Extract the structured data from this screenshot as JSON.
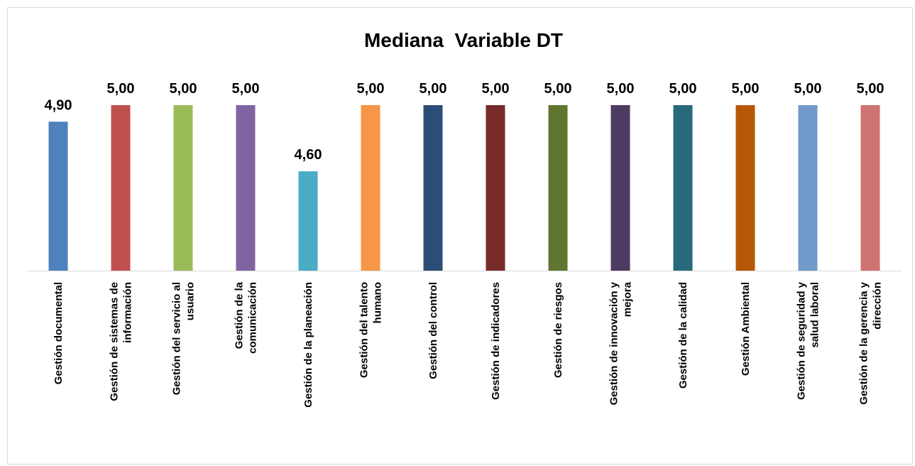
{
  "chart_data": {
    "type": "bar",
    "title": "Mediana  Variable DT",
    "xlabel": "",
    "ylabel": "",
    "ylim": [
      4.0,
      5.0
    ],
    "legend": "none",
    "grid": false,
    "categories": [
      "Gestión documental",
      "Gestión de sistemas de información",
      "Gestión del servicio al usuario",
      "Gestión de la comunicación",
      "Gestión de la planeación",
      "Gestión del talento humano",
      "Gestión del control",
      "Gestión de indicadores",
      "Gestión de riesgos",
      "Gestión de innovación y mejora",
      "Gestión de la calidad",
      "Gestión Ambiental",
      "Gestión de seguridad y salud laboral",
      "Gestión de la gerencia y dirección"
    ],
    "category_lines": [
      [
        "Gestión documental"
      ],
      [
        "Gestión de sistemas de",
        "información"
      ],
      [
        "Gestión del servicio al",
        "usuario"
      ],
      [
        "Gestión de la",
        "comunicación"
      ],
      [
        "Gestión de la planeación"
      ],
      [
        "Gestión del talento",
        "humano"
      ],
      [
        "Gestión del control"
      ],
      [
        "Gestión de indicadores"
      ],
      [
        "Gestión de riesgos"
      ],
      [
        "Gestión de innovación y",
        "mejora"
      ],
      [
        "Gestión de la calidad"
      ],
      [
        "Gestión Ambiental"
      ],
      [
        "Gestión de seguridad y",
        "salud laboral"
      ],
      [
        "Gestión de la gerencia y",
        "dirección"
      ]
    ],
    "values": [
      4.9,
      5.0,
      5.0,
      5.0,
      4.6,
      5.0,
      5.0,
      5.0,
      5.0,
      5.0,
      5.0,
      5.0,
      5.0,
      5.0
    ],
    "data_labels": [
      "4,90",
      "5,00",
      "5,00",
      "5,00",
      "4,60",
      "5,00",
      "5,00",
      "5,00",
      "5,00",
      "5,00",
      "5,00",
      "5,00",
      "5,00",
      "5,00"
    ],
    "colors": [
      "#4F81BD",
      "#C0504D",
      "#9BBB59",
      "#8064A2",
      "#4BACC6",
      "#F79646",
      "#2C4D75",
      "#772C2A",
      "#5F7530",
      "#4D3B62",
      "#276A7C",
      "#B65708",
      "#729ACA",
      "#CD7371"
    ]
  }
}
